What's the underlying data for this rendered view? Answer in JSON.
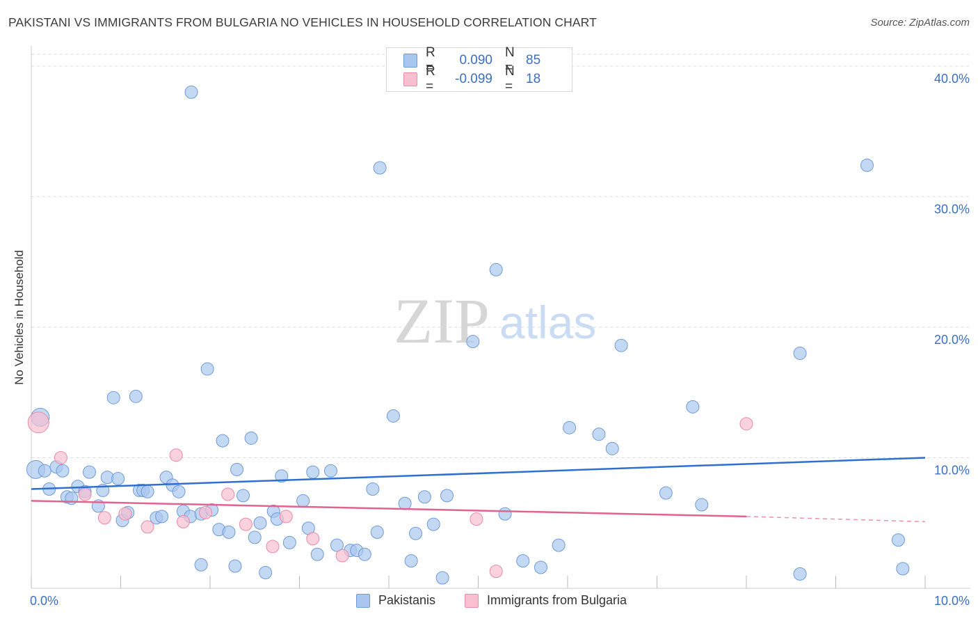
{
  "title": "PAKISTANI VS IMMIGRANTS FROM BULGARIA NO VEHICLES IN HOUSEHOLD CORRELATION CHART",
  "source": "Source: ZipAtlas.com",
  "watermark": {
    "zip": "ZIP",
    "atlas": "atlas"
  },
  "legend": {
    "r_label": "R =",
    "n_label": "N =",
    "series": [
      {
        "name": "Pakistanis",
        "r": "0.090",
        "n": "85",
        "fill": "#a9c7ee",
        "stroke": "#6f9bd9"
      },
      {
        "name": "Immigrants from Bulgaria",
        "r": "-0.099",
        "n": "18",
        "fill": "#f7bfd0",
        "stroke": "#e88aa8"
      }
    ]
  },
  "colors": {
    "blue_point": "#a9c7ee",
    "blue_edge": "#6f9bd9",
    "blue_line": "#2f6fd0",
    "pink_point": "#f7bfd0",
    "pink_edge": "#e88aa8",
    "pink_line": "#e26390",
    "tick_text": "#3a6fc4",
    "grid": "#dddddd"
  },
  "chart_data": {
    "type": "scatter",
    "title": "PAKISTANI VS IMMIGRANTS FROM BULGARIA NO VEHICLES IN HOUSEHOLD CORRELATION CHART",
    "xlabel": "",
    "ylabel": "No Vehicles in Household",
    "xlim": [
      0,
      10
    ],
    "ylim": [
      0,
      40
    ],
    "x_tick_labels": [
      "0.0%",
      "10.0%"
    ],
    "y_ticks": [
      10,
      20,
      30,
      40
    ],
    "y_tick_labels": [
      "10.0%",
      "20.0%",
      "30.0%",
      "40.0%"
    ],
    "grid": true,
    "series": [
      {
        "name": "Pakistanis",
        "r": 0.09,
        "n": 85,
        "trend": {
          "x": [
            0,
            10
          ],
          "y": [
            7.6,
            10.0
          ]
        },
        "points": [
          [
            0.05,
            9.1
          ],
          [
            0.1,
            13.1
          ],
          [
            0.15,
            9.0
          ],
          [
            0.2,
            7.6
          ],
          [
            0.28,
            9.3
          ],
          [
            0.35,
            9.0
          ],
          [
            0.4,
            7.0
          ],
          [
            0.45,
            6.9
          ],
          [
            0.52,
            7.8
          ],
          [
            0.6,
            7.4
          ],
          [
            0.65,
            8.9
          ],
          [
            0.75,
            6.3
          ],
          [
            0.8,
            7.5
          ],
          [
            0.85,
            8.5
          ],
          [
            0.92,
            14.6
          ],
          [
            0.97,
            8.4
          ],
          [
            1.02,
            5.2
          ],
          [
            1.08,
            5.8
          ],
          [
            1.17,
            14.7
          ],
          [
            1.21,
            7.5
          ],
          [
            1.25,
            7.5
          ],
          [
            1.3,
            7.4
          ],
          [
            1.4,
            5.4
          ],
          [
            1.46,
            5.5
          ],
          [
            1.51,
            8.5
          ],
          [
            1.58,
            7.9
          ],
          [
            1.65,
            7.4
          ],
          [
            1.7,
            5.9
          ],
          [
            1.78,
            5.5
          ],
          [
            1.79,
            38.0
          ],
          [
            1.9,
            5.7
          ],
          [
            1.9,
            1.8
          ],
          [
            1.97,
            16.8
          ],
          [
            2.02,
            6.0
          ],
          [
            2.1,
            4.5
          ],
          [
            2.14,
            11.3
          ],
          [
            2.21,
            4.3
          ],
          [
            2.28,
            1.7
          ],
          [
            2.3,
            9.1
          ],
          [
            2.37,
            7.1
          ],
          [
            2.46,
            11.5
          ],
          [
            2.5,
            3.9
          ],
          [
            2.56,
            5.0
          ],
          [
            2.62,
            1.2
          ],
          [
            2.71,
            5.9
          ],
          [
            2.75,
            5.3
          ],
          [
            2.8,
            8.6
          ],
          [
            2.89,
            3.5
          ],
          [
            3.04,
            6.7
          ],
          [
            3.1,
            4.6
          ],
          [
            3.15,
            8.9
          ],
          [
            3.2,
            2.6
          ],
          [
            3.35,
            9.0
          ],
          [
            3.42,
            3.3
          ],
          [
            3.57,
            2.9
          ],
          [
            3.64,
            2.9
          ],
          [
            3.73,
            2.6
          ],
          [
            3.82,
            7.6
          ],
          [
            3.87,
            4.3
          ],
          [
            3.9,
            32.2
          ],
          [
            4.05,
            13.2
          ],
          [
            4.18,
            6.5
          ],
          [
            4.25,
            2.1
          ],
          [
            4.3,
            4.2
          ],
          [
            4.4,
            7.0
          ],
          [
            4.5,
            4.9
          ],
          [
            4.6,
            0.8
          ],
          [
            4.65,
            7.1
          ],
          [
            4.94,
            18.9
          ],
          [
            5.2,
            24.4
          ],
          [
            5.3,
            5.7
          ],
          [
            5.5,
            2.1
          ],
          [
            5.7,
            1.6
          ],
          [
            5.9,
            3.3
          ],
          [
            6.02,
            12.3
          ],
          [
            6.35,
            11.8
          ],
          [
            6.5,
            10.7
          ],
          [
            6.6,
            18.6
          ],
          [
            7.1,
            7.3
          ],
          [
            7.4,
            13.9
          ],
          [
            7.5,
            6.4
          ],
          [
            8.6,
            18.0
          ],
          [
            8.6,
            1.1
          ],
          [
            9.35,
            32.4
          ],
          [
            9.7,
            3.7
          ],
          [
            9.75,
            1.5
          ]
        ]
      },
      {
        "name": "Immigrants from Bulgaria",
        "r": -0.099,
        "n": 18,
        "trend": {
          "x": [
            0,
            8.0
          ],
          "y": [
            6.7,
            5.5
          ]
        },
        "trend_dashed": {
          "x": [
            8.0,
            10
          ],
          "y": [
            5.5,
            5.1
          ]
        },
        "points": [
          [
            0.08,
            12.7
          ],
          [
            0.33,
            10.0
          ],
          [
            0.6,
            7.2
          ],
          [
            0.82,
            5.4
          ],
          [
            1.05,
            5.7
          ],
          [
            1.3,
            4.7
          ],
          [
            1.62,
            10.2
          ],
          [
            1.7,
            5.1
          ],
          [
            1.95,
            5.8
          ],
          [
            2.2,
            7.2
          ],
          [
            2.4,
            4.9
          ],
          [
            2.7,
            3.2
          ],
          [
            2.85,
            5.5
          ],
          [
            3.15,
            3.8
          ],
          [
            3.48,
            2.5
          ],
          [
            4.98,
            5.3
          ],
          [
            5.2,
            1.3
          ],
          [
            8.0,
            12.6
          ]
        ]
      }
    ]
  }
}
